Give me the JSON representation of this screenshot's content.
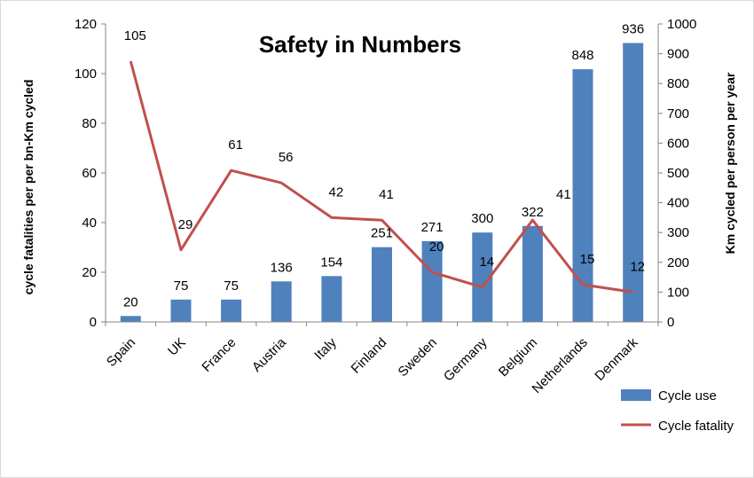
{
  "chart_data": {
    "type": "bar",
    "title": "Safety in Numbers",
    "categories": [
      "Spain",
      "UK",
      "France",
      "Austria",
      "Italy",
      "Finland",
      "Sweden",
      "Germany",
      "Belgium",
      "Netherlands",
      "Denmark"
    ],
    "series": [
      {
        "name": "Cycle use",
        "type": "bar",
        "axis": "right",
        "color": "#4F81BD",
        "values": [
          20,
          75,
          75,
          136,
          154,
          251,
          271,
          300,
          322,
          848,
          936
        ]
      },
      {
        "name": "Cycle fatality",
        "type": "line",
        "axis": "left",
        "color": "#C0504D",
        "values": [
          105,
          29,
          61,
          56,
          42,
          41,
          20,
          14,
          41,
          15,
          12
        ]
      }
    ],
    "y_left": {
      "label": "cycle fatalities per per bn-Km cycled",
      "lim": [
        0,
        120
      ],
      "ticks": [
        "0",
        "20",
        "40",
        "60",
        "80",
        "100",
        "120"
      ]
    },
    "y_right": {
      "label": "Km cycled per person per year",
      "lim": [
        0,
        1000
      ],
      "ticks": [
        "0",
        "100",
        "200",
        "300",
        "400",
        "500",
        "600",
        "700",
        "800",
        "900",
        "1000"
      ]
    },
    "grid": false,
    "legend": "bottom-right"
  }
}
